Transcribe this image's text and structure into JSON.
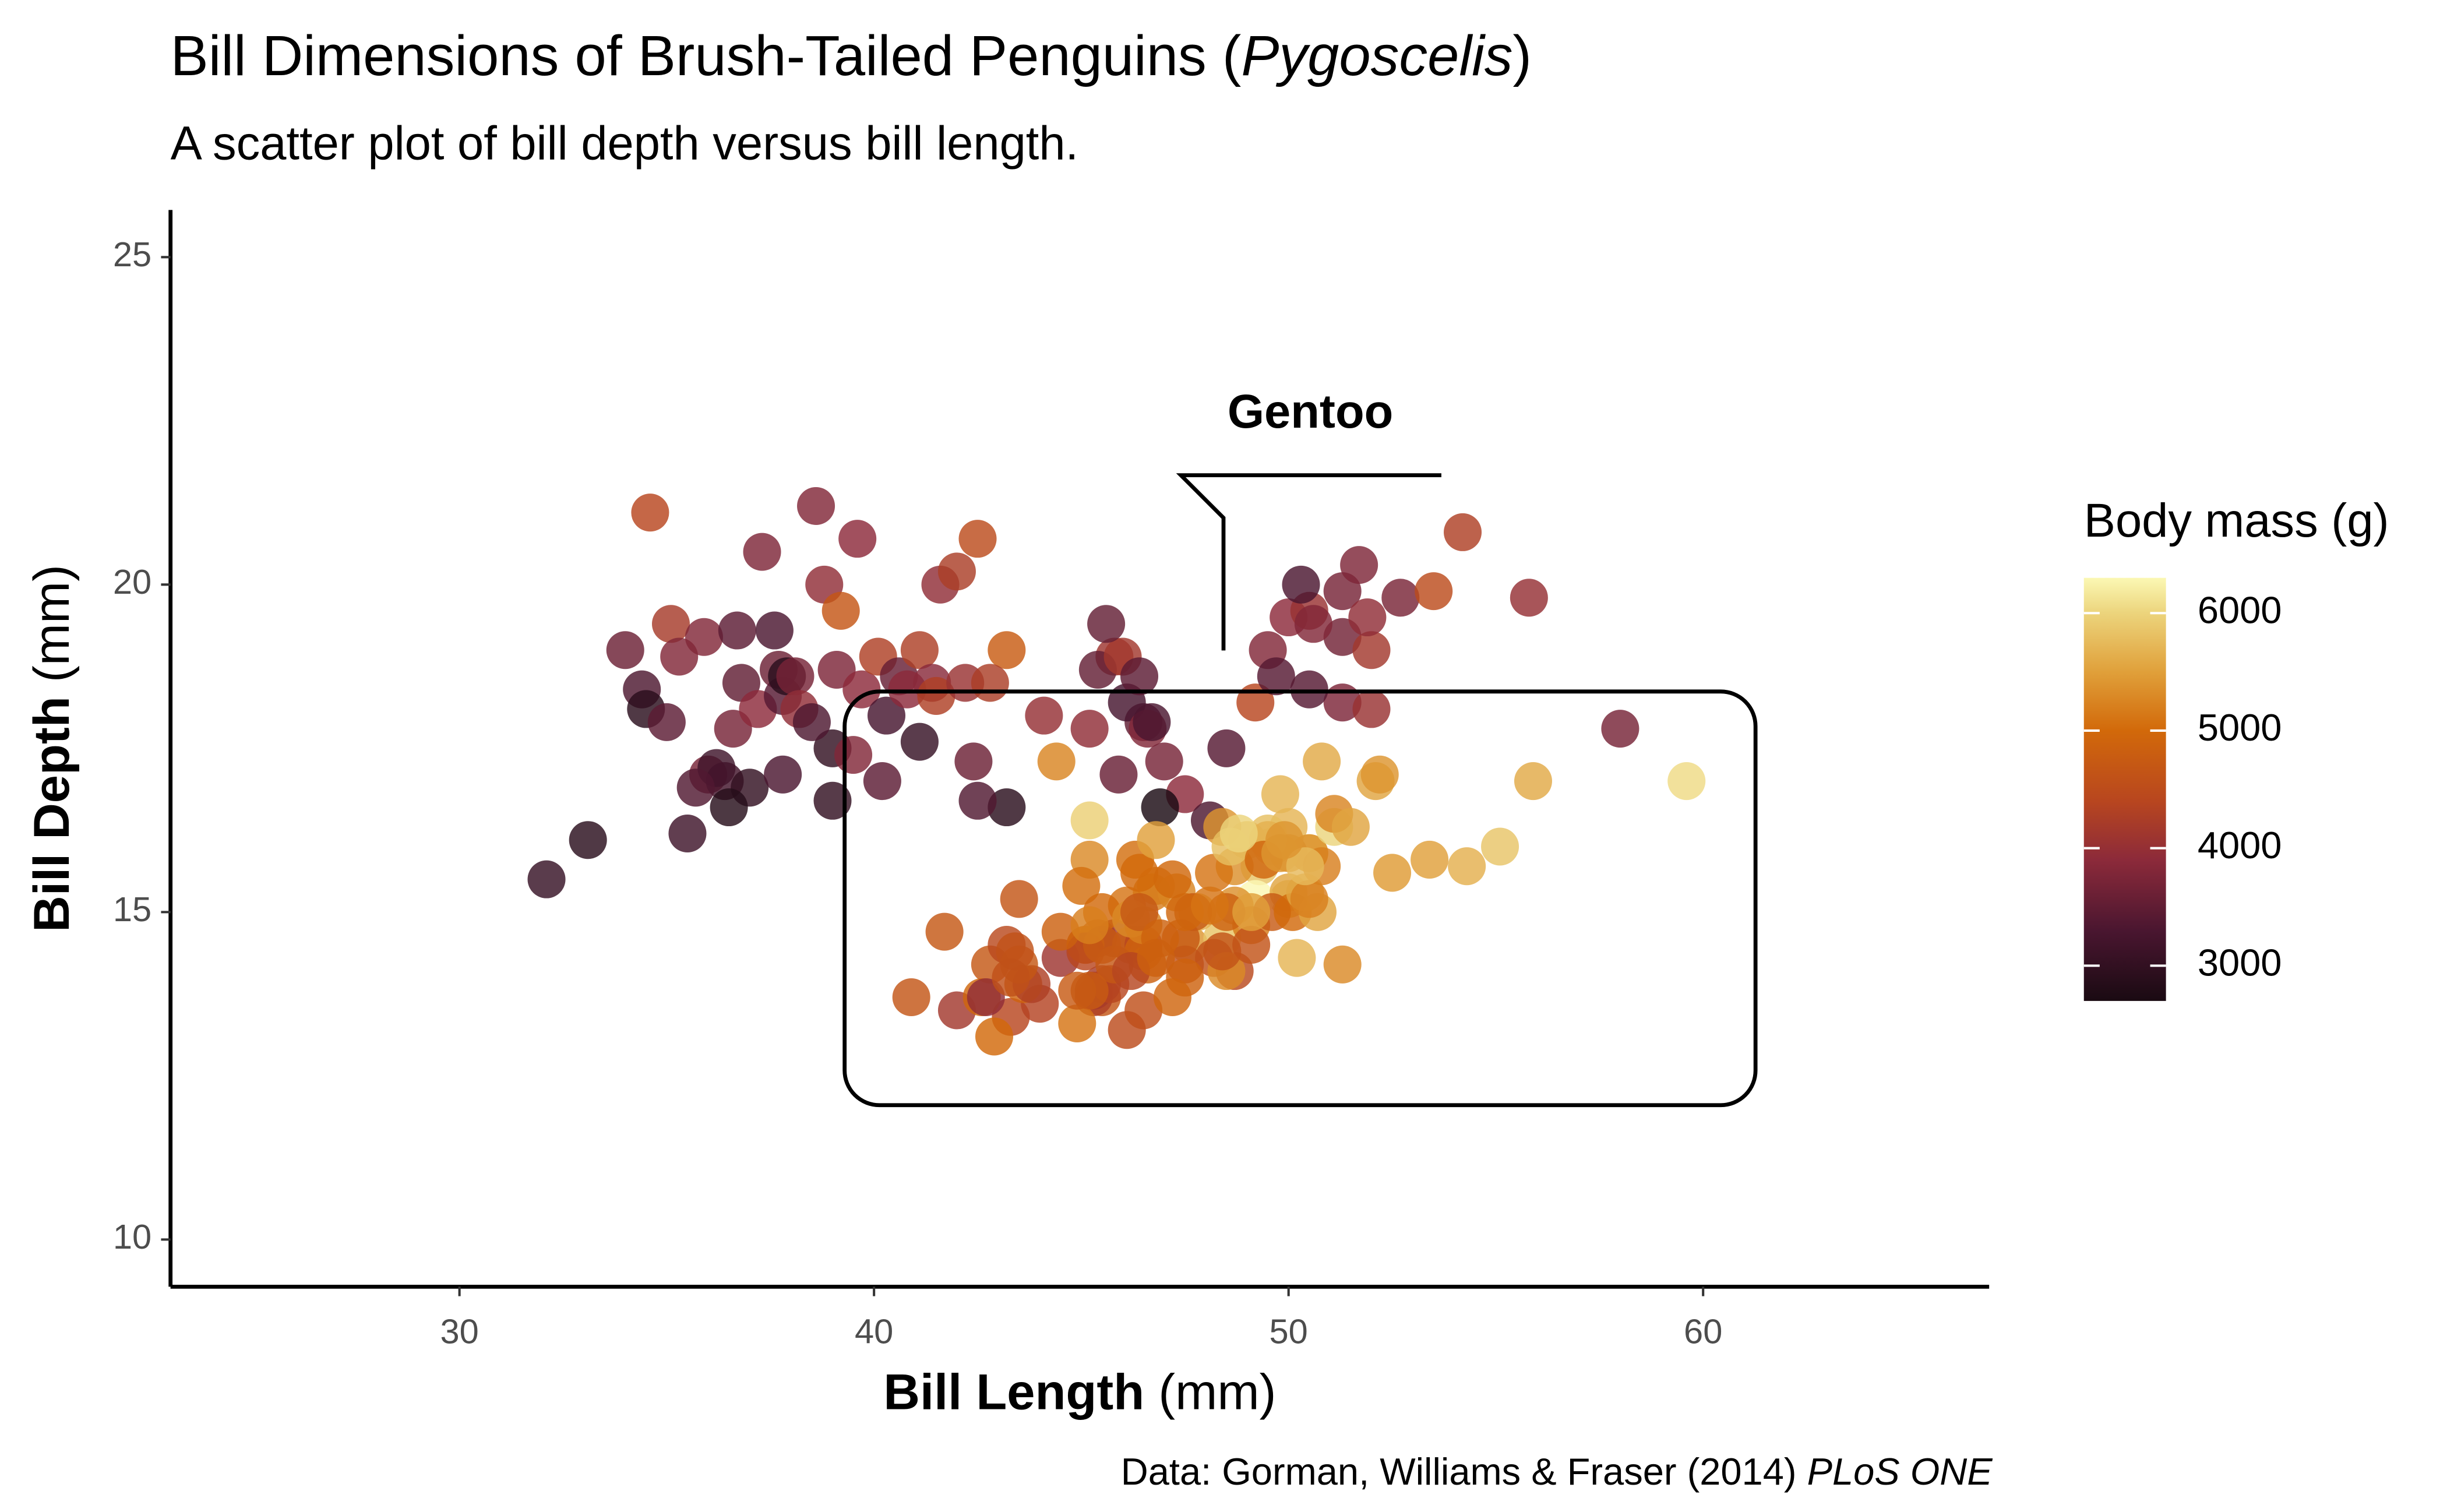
{
  "chart_data": {
    "type": "scatter",
    "title": [
      "Bill Dimensions of Brush-Tailed Penguins (",
      "Pygoscelis",
      ")"
    ],
    "subtitle": "A scatter plot of bill depth versus bill length.",
    "x_label": [
      "Bill Length",
      " (mm)"
    ],
    "y_label": [
      "Bill Depth",
      " (mm)"
    ],
    "caption": [
      "Data: Gorman, Williams & Fraser (2014) ",
      "PLoS ONE"
    ],
    "annotation": "Gentoo",
    "xlim": [
      23.03,
      66.9
    ],
    "ylim": [
      9.28,
      25.72
    ],
    "xticks": [
      30,
      40,
      50,
      60
    ],
    "yticks": [
      10,
      15,
      20,
      25
    ],
    "x": [
      32.1,
      33.1,
      34.0,
      34.6,
      34.4,
      34.5,
      35.1,
      35.0,
      35.3,
      35.5,
      35.9,
      36.0,
      36.2,
      36.4,
      36.6,
      36.7,
      36.8,
      37.0,
      37.2,
      37.3,
      37.6,
      37.7,
      37.8,
      37.9,
      38.1,
      38.2,
      38.6,
      38.8,
      39.0,
      39.1,
      39.2,
      39.5,
      39.6,
      39.7,
      40.1,
      40.3,
      40.6,
      40.8,
      41.1,
      41.4,
      41.5,
      41.6,
      42.0,
      42.2,
      42.5,
      43.2,
      38.5,
      36.5,
      39.0,
      37.8,
      35.7,
      41.1,
      40.2,
      42.8,
      45.8,
      44.1,
      46.5,
      50.0,
      51.3,
      45.4,
      52.7,
      45.2,
      46.1,
      51.3,
      46.0,
      51.3,
      46.6,
      51.7,
      47.0,
      52.0,
      45.9,
      50.5,
      50.3,
      58.0,
      46.4,
      49.2,
      42.4,
      48.5,
      43.2,
      50.6,
      46.7,
      52.0,
      50.5,
      49.5,
      54.2,
      55.8,
      49.7,
      53.5,
      47.5,
      48.1,
      45.6,
      42.5,
      46.9,
      51.9,
      46.1,
      50.0,
      48.7,
      50.0,
      47.6,
      46.5,
      45.4,
      46.7,
      43.3,
      46.8,
      40.9,
      49.0,
      45.5,
      48.4,
      45.8,
      49.3,
      42.0,
      49.2,
      46.2,
      48.7,
      50.2,
      45.1,
      46.5,
      46.3,
      42.9,
      46.1,
      44.5,
      47.8,
      48.2,
      50.0,
      47.3,
      42.8,
      45.1,
      59.6,
      49.1,
      48.4,
      42.6,
      44.4,
      44.0,
      48.7,
      42.7,
      49.6,
      45.3,
      49.6,
      50.5,
      43.6,
      45.5,
      50.5,
      44.9,
      45.2,
      46.6,
      48.5,
      45.1,
      50.1,
      46.5,
      45.0,
      43.8,
      45.5,
      43.2,
      50.4,
      45.3,
      46.2,
      45.7,
      54.3,
      45.8,
      49.8,
      49.5,
      43.5,
      50.7,
      47.7,
      46.4,
      48.2,
      46.5,
      46.4,
      48.6,
      47.5,
      51.1,
      45.2,
      45.2,
      49.1,
      52.5,
      47.4,
      50.0,
      44.9,
      50.8,
      43.4,
      51.3,
      47.5,
      52.1,
      47.5,
      52.2,
      45.5,
      49.5,
      44.5,
      50.8,
      49.4,
      46.9,
      48.4,
      51.1,
      48.5,
      55.9,
      47.2,
      49.1,
      46.8,
      41.7,
      53.4,
      43.3,
      48.1,
      50.5,
      49.8,
      43.5,
      51.5,
      46.2,
      55.1,
      48.8,
      47.2,
      46.8,
      50.4,
      45.2,
      49.9
    ],
    "values": [
      15.5,
      16.1,
      19.0,
      21.1,
      18.4,
      18.1,
      19.4,
      17.9,
      18.9,
      16.2,
      19.2,
      17.1,
      17.2,
      17.0,
      17.8,
      19.3,
      18.5,
      16.9,
      18.1,
      20.5,
      19.3,
      18.7,
      18.3,
      18.6,
      18.6,
      18.1,
      21.2,
      20.0,
      17.5,
      18.7,
      19.6,
      17.4,
      20.7,
      18.4,
      18.9,
      18.0,
      18.6,
      18.4,
      19.0,
      18.5,
      18.3,
      20.0,
      20.2,
      18.5,
      20.7,
      19.0,
      17.9,
      16.6,
      16.7,
      17.1,
      16.9,
      17.6,
      17.0,
      18.5,
      18.9,
      18.0,
      17.9,
      19.5,
      19.2,
      18.7,
      19.8,
      17.8,
      18.2,
      18.2,
      18.9,
      19.9,
      17.8,
      20.3,
      17.3,
      18.1,
      17.1,
      19.6,
      20.0,
      17.8,
      18.6,
      18.2,
      17.3,
      17.5,
      16.6,
      19.4,
      17.9,
      19.0,
      18.4,
      19.0,
      20.8,
      19.8,
      18.6,
      19.9,
      16.8,
      16.4,
      19.4,
      16.7,
      16.6,
      19.5,
      13.2,
      16.3,
      14.1,
      15.2,
      14.5,
      13.5,
      14.6,
      15.3,
      13.4,
      15.4,
      13.7,
      16.1,
      13.7,
      14.6,
      14.6,
      15.7,
      13.5,
      15.2,
      14.5,
      15.1,
      14.3,
      14.5,
      14.5,
      15.8,
      13.1,
      15.1,
      14.3,
      15.0,
      14.3,
      15.3,
      15.3,
      14.2,
      14.5,
      17.0,
      14.8,
      16.3,
      13.7,
      17.3,
      13.6,
      15.7,
      13.7,
      16.0,
      13.7,
      15.0,
      15.9,
      13.9,
      13.9,
      15.9,
      13.3,
      15.8,
      14.2,
      14.1,
      14.4,
      15.0,
      14.4,
      15.4,
      13.9,
      15.0,
      14.5,
      15.3,
      13.8,
      14.9,
      13.9,
      15.7,
      14.2,
      16.8,
      16.2,
      14.2,
      15.0,
      15.0,
      15.6,
      15.6,
      14.8,
      15.0,
      16.0,
      14.2,
      16.3,
      13.8,
      16.4,
      14.5,
      15.6,
      14.6,
      15.9,
      13.8,
      17.3,
      14.4,
      14.2,
      14.0,
      17.0,
      15.0,
      17.1,
      14.5,
      16.1,
      14.7,
      15.7,
      15.8,
      14.6,
      14.4,
      16.5,
      15.0,
      17.0,
      15.5,
      15.0,
      16.1,
      14.7,
      15.8,
      14.0,
      15.1,
      15.2,
      15.9,
      15.2,
      16.3,
      14.1,
      16.0,
      16.2,
      13.7,
      14.3,
      15.7,
      14.8,
      16.1
    ],
    "mass": [
      3050,
      2900,
      3600,
      4400,
      3325,
      2900,
      4200,
      3450,
      3800,
      3150,
      3800,
      3700,
      3150,
      3200,
      3700,
      3450,
      3500,
      3000,
      3900,
      3775,
      3300,
      3600,
      3400,
      2900,
      3700,
      3950,
      3800,
      3950,
      3000,
      3750,
      4675,
      3800,
      3900,
      3900,
      4300,
      3250,
      3550,
      3900,
      4275,
      3875,
      4300,
      3950,
      4250,
      4050,
      4500,
      4775,
      3325,
      2850,
      3000,
      3300,
      3350,
      3050,
      3450,
      4250,
      4100,
      4000,
      3500,
      3900,
      3650,
      3525,
      3725,
      3950,
      3250,
      3750,
      4150,
      3700,
      3800,
      3775,
      3700,
      4050,
      3575,
      4050,
      3300,
      3700,
      3450,
      4400,
      3600,
      3400,
      2900,
      3800,
      3300,
      4150,
      3400,
      3800,
      4300,
      4000,
      3400,
      4500,
      3900,
      3325,
      3525,
      3350,
      2700,
      3950,
      4500,
      5700,
      4450,
      5700,
      5400,
      4550,
      4800,
      5200,
      4400,
      5150,
      4650,
      5550,
      4650,
      5850,
      4200,
      5850,
      4150,
      6300,
      4800,
      5350,
      5700,
      5000,
      4400,
      5050,
      5000,
      5100,
      4100,
      5650,
      4600,
      5550,
      5250,
      4700,
      5050,
      6050,
      5150,
      5400,
      4950,
      5250,
      4350,
      5350,
      3950,
      5700,
      4300,
      4750,
      5550,
      4900,
      4200,
      5400,
      5100,
      5300,
      4850,
      5300,
      4400,
      5000,
      4900,
      5050,
      4300,
      5000,
      4450,
      5550,
      4200,
      5300,
      4400,
      5650,
      4700,
      5700,
      5800,
      4700,
      5550,
      4750,
      5000,
      5100,
      5200,
      4700,
      5800,
      4600,
      6000,
      4750,
      5950,
      4625,
      5450,
      4725,
      5350,
      4750,
      5600,
      4600,
      5300,
      4875,
      5550,
      4950,
      5400,
      4750,
      5650,
      4850,
      5200,
      4925,
      4875,
      4625,
      5250,
      4850,
      5600,
      4975,
      5500,
      5500,
      4700,
      5500,
      4575,
      5100,
      5200,
      5400,
      4650,
      5550,
      4375,
      5850,
      6000,
      4925,
      4850,
      5750,
      5200,
      5400
    ],
    "colorbar": {
      "title": "Body mass (g)",
      "lim": [
        2700,
        6300
      ],
      "ticks": [
        3000,
        4000,
        5000,
        6000
      ],
      "stops": [
        [
          2700,
          "#1a0a12"
        ],
        [
          3300,
          "#4a1630"
        ],
        [
          3900,
          "#8c2a3a"
        ],
        [
          4400,
          "#b8461f"
        ],
        [
          5000,
          "#d2690a"
        ],
        [
          5500,
          "#e0a03a"
        ],
        [
          6000,
          "#ecd47c"
        ],
        [
          6300,
          "#fbf8b4"
        ]
      ]
    }
  }
}
